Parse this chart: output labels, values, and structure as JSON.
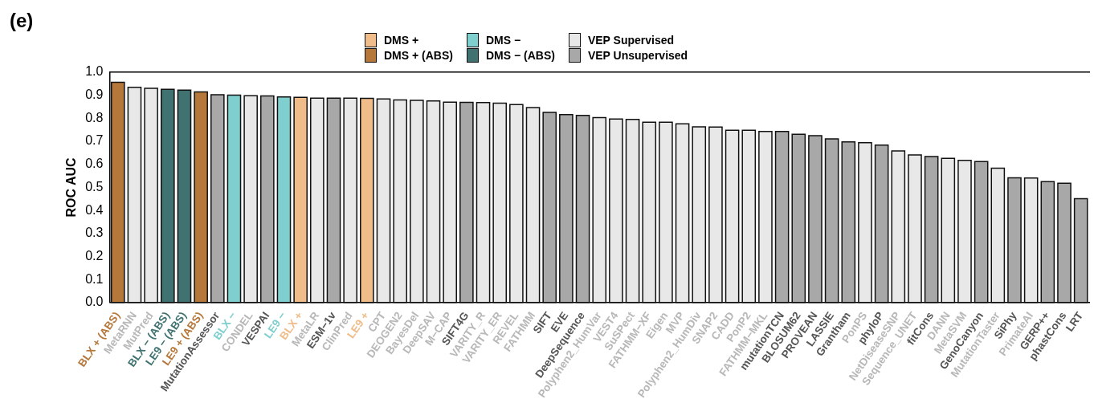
{
  "chart_data": {
    "type": "bar",
    "title": "(e)",
    "ylabel": "ROC AUC",
    "categories": [
      "BLX + (ABS)",
      "MetaRNN",
      "MutPred",
      "BLX − (ABS)",
      "LE9 − (ABS)",
      "LE9 + (ABS)",
      "MutationAssessor",
      "BLX −",
      "CONDEL",
      "VESPAI",
      "LE9 −",
      "BLX +",
      "MetaLR",
      "ESM−1v",
      "ClinPred",
      "LE9 +",
      "CPT",
      "DEOGEN2",
      "BayesDel",
      "DeepSAV",
      "M−CAP",
      "SIFT4G",
      "VARITY_R",
      "VARITY_ER",
      "REVEL",
      "FATHMM",
      "SIFT",
      "EVE",
      "DeepSequence",
      "Polyphen2_HumVar",
      "VEST4",
      "SuSPect",
      "FATHMM−XF",
      "Eigen",
      "MVP",
      "Polyphen2_HumDiv",
      "SNAP2",
      "CADD",
      "PonP2",
      "FATHMM−MKL",
      "mutationTCN",
      "BLOSUM62",
      "PROVEAN",
      "LASSIE",
      "Grantham",
      "PonPS",
      "phyloP",
      "NetDiseaseSNP",
      "Sequence_UNET",
      "fitCons",
      "DANN",
      "MetaSVM",
      "GenoCanyon",
      "MutationTaster",
      "SiPhy",
      "PrimateAI",
      "GERP++",
      "phastCons",
      "LRT"
    ],
    "series": [
      {
        "name": "DMS +",
        "color": "#efbc8a",
        "values": [
          null,
          null,
          null,
          null,
          null,
          null,
          null,
          null,
          null,
          null,
          null,
          0.891,
          null,
          null,
          null,
          0.887,
          null,
          null,
          null,
          null,
          null,
          null,
          null,
          null,
          null,
          null,
          null,
          null,
          null,
          null,
          null,
          null,
          null,
          null,
          null,
          null,
          null,
          null,
          null,
          null,
          null,
          null,
          null,
          null,
          null,
          null,
          null,
          null,
          null,
          null,
          null,
          null,
          null,
          null,
          null,
          null,
          null,
          null,
          null
        ]
      },
      {
        "name": "DMS + (ABS)",
        "color": "#b5773a",
        "values": [
          0.956,
          null,
          null,
          null,
          null,
          0.915,
          null,
          null,
          null,
          null,
          null,
          null,
          null,
          null,
          null,
          null,
          null,
          null,
          null,
          null,
          null,
          null,
          null,
          null,
          null,
          null,
          null,
          null,
          null,
          null,
          null,
          null,
          null,
          null,
          null,
          null,
          null,
          null,
          null,
          null,
          null,
          null,
          null,
          null,
          null,
          null,
          null,
          null,
          null,
          null,
          null,
          null,
          null,
          null,
          null,
          null,
          null,
          null,
          null
        ]
      },
      {
        "name": "DMS −",
        "color": "#7fcfcf",
        "values": [
          null,
          null,
          null,
          null,
          null,
          null,
          null,
          0.901,
          null,
          null,
          0.893,
          null,
          null,
          null,
          null,
          null,
          null,
          null,
          null,
          null,
          null,
          null,
          null,
          null,
          null,
          null,
          null,
          null,
          null,
          null,
          null,
          null,
          null,
          null,
          null,
          null,
          null,
          null,
          null,
          null,
          null,
          null,
          null,
          null,
          null,
          null,
          null,
          null,
          null,
          null,
          null,
          null,
          null,
          null,
          null,
          null,
          null,
          null,
          null
        ]
      },
      {
        "name": "DMS − (ABS)",
        "color": "#3f7270",
        "values": [
          null,
          null,
          null,
          0.926,
          0.922,
          null,
          null,
          null,
          null,
          null,
          null,
          null,
          null,
          null,
          null,
          null,
          null,
          null,
          null,
          null,
          null,
          null,
          null,
          null,
          null,
          null,
          null,
          null,
          null,
          null,
          null,
          null,
          null,
          null,
          null,
          null,
          null,
          null,
          null,
          null,
          null,
          null,
          null,
          null,
          null,
          null,
          null,
          null,
          null,
          null,
          null,
          null,
          null,
          null,
          null,
          null,
          null,
          null,
          null
        ]
      },
      {
        "name": "VEP Supervised",
        "color": "#e8e8e8",
        "values": [
          null,
          0.935,
          0.93,
          null,
          null,
          null,
          null,
          null,
          0.898,
          null,
          null,
          null,
          0.888,
          null,
          0.888,
          null,
          0.884,
          0.88,
          0.878,
          0.875,
          0.87,
          null,
          0.868,
          0.866,
          0.86,
          0.847,
          null,
          null,
          null,
          0.803,
          0.797,
          0.795,
          0.783,
          0.783,
          0.776,
          0.763,
          0.762,
          0.748,
          0.748,
          0.743,
          null,
          null,
          null,
          null,
          null,
          0.694,
          null,
          0.658,
          0.641,
          null,
          0.626,
          0.617,
          null,
          0.583,
          null,
          0.541,
          null,
          null,
          null
        ]
      },
      {
        "name": "VEP Unsupervised",
        "color": "#a8a8a8",
        "values": [
          null,
          null,
          null,
          null,
          null,
          null,
          0.902,
          null,
          null,
          0.897,
          null,
          null,
          null,
          0.888,
          null,
          null,
          null,
          null,
          null,
          null,
          null,
          0.869,
          null,
          null,
          null,
          null,
          0.826,
          0.816,
          0.813,
          null,
          null,
          null,
          null,
          null,
          null,
          null,
          null,
          null,
          null,
          null,
          0.743,
          0.731,
          0.725,
          0.711,
          0.698,
          null,
          0.684,
          null,
          null,
          0.634,
          null,
          null,
          0.612,
          null,
          0.542,
          null,
          0.525,
          0.518,
          0.451
        ]
      }
    ],
    "ylim": [
      0,
      1
    ],
    "yticks": [
      {
        "value": 0,
        "label": "0.0"
      },
      0.1,
      0.2,
      0.3,
      0.4,
      0.5,
      0.6,
      0.7,
      0.8,
      0.9,
      {
        "value": 1,
        "label": "1.0"
      }
    ],
    "grid": false,
    "legend": "top"
  }
}
